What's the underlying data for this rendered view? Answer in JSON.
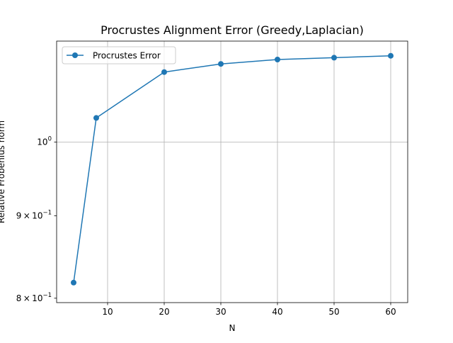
{
  "chart_data": {
    "type": "line",
    "title": "Procrustes Alignment Error (Greedy,Laplacian)",
    "xlabel": "N",
    "ylabel": "Relative Frobenius norm",
    "y_scale": "log",
    "xlim": [
      1,
      63
    ],
    "ylim": [
      0.795,
      1.155
    ],
    "grid": true,
    "legend_position": "top-left",
    "x_ticks": [
      {
        "value": 10,
        "label": "10"
      },
      {
        "value": 20,
        "label": "20"
      },
      {
        "value": 30,
        "label": "30"
      },
      {
        "value": 40,
        "label": "40"
      },
      {
        "value": 50,
        "label": "50"
      },
      {
        "value": 60,
        "label": "60"
      }
    ],
    "y_ticks": [
      {
        "value": 0.8,
        "mantissa": "8",
        "exponent": "−1"
      },
      {
        "value": 0.9,
        "mantissa": "9",
        "exponent": "−1"
      },
      {
        "value": 1.0,
        "base": "10",
        "exponent": "0"
      }
    ],
    "times_symbol": "×",
    "series": [
      {
        "name": "Procrustes Error",
        "color": "#1f77b4",
        "x": [
          4,
          8,
          20,
          30,
          40,
          50,
          60
        ],
        "y": [
          0.818,
          1.035,
          1.105,
          1.118,
          1.125,
          1.128,
          1.131
        ]
      }
    ]
  }
}
